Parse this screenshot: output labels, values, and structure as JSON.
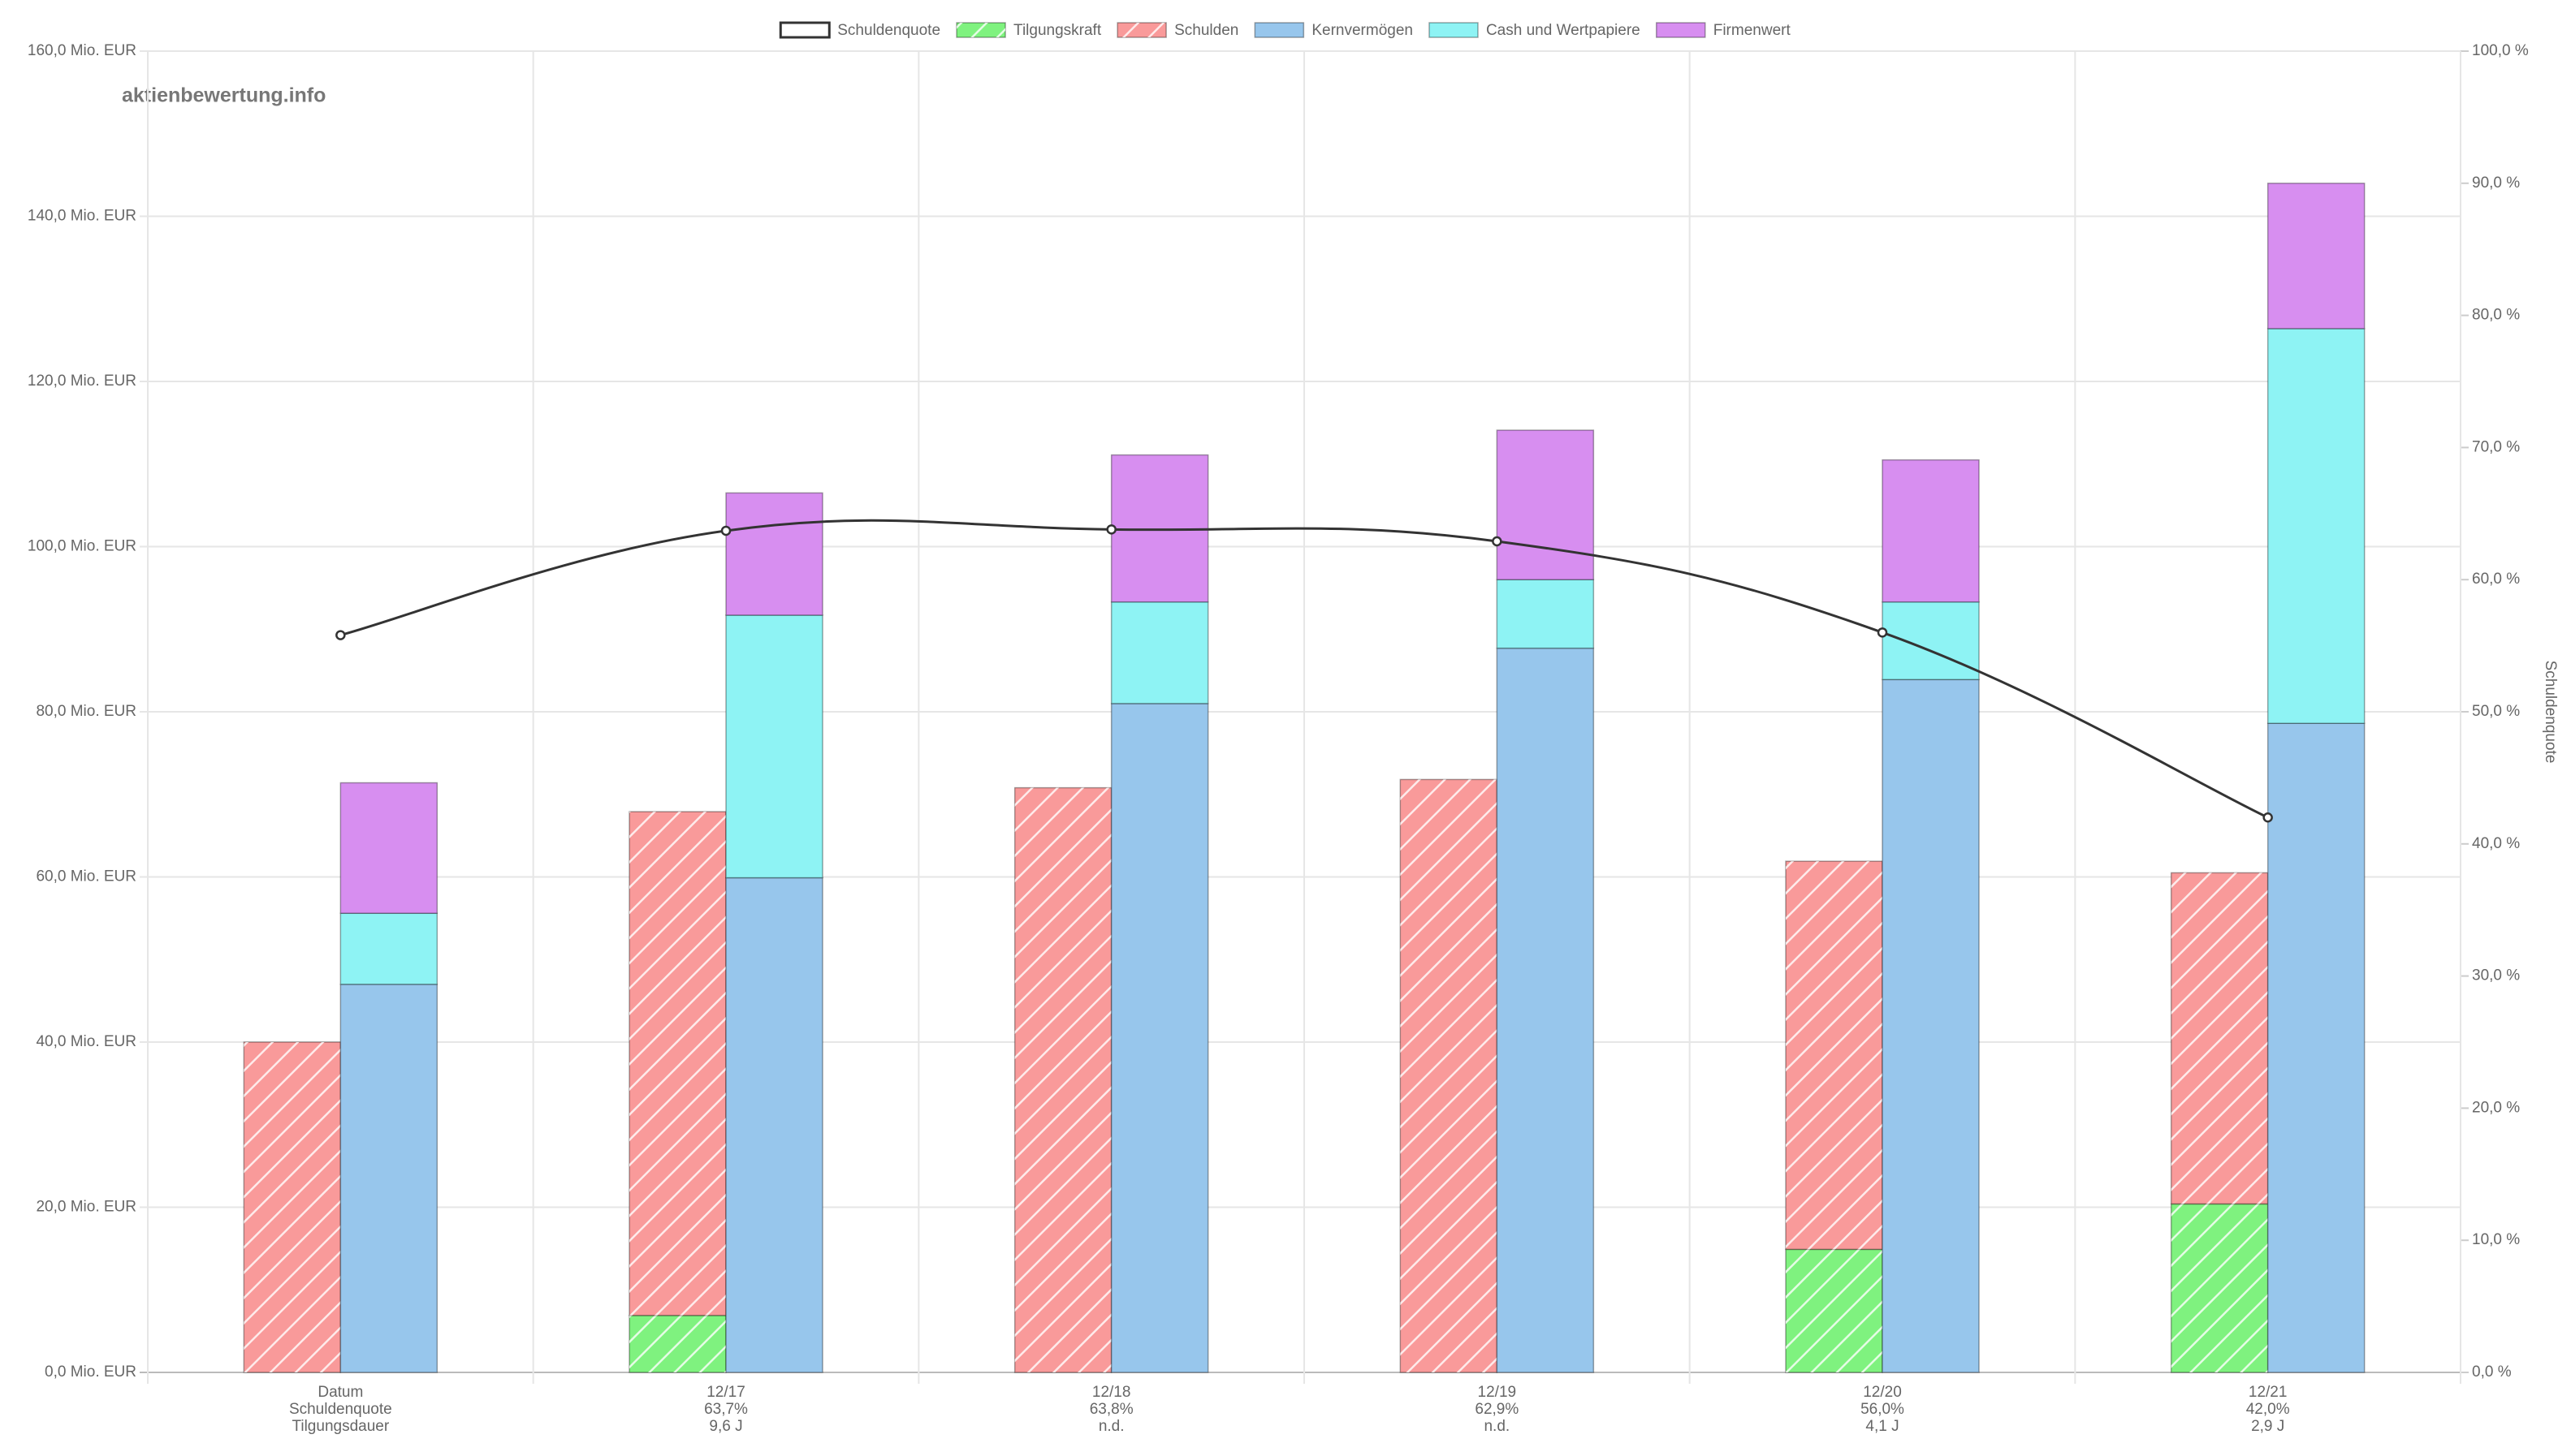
{
  "chart_data": {
    "type": "bar",
    "watermark": "aktienbewertung.info",
    "y2_label": "Schuldenquote",
    "categories": [
      "Datum",
      "12/17",
      "12/18",
      "12/19",
      "12/20",
      "12/21"
    ],
    "quote_labels": [
      "Schuldenquote",
      "63,7%",
      "63,8%",
      "62,9%",
      "56,0%",
      "42,0%"
    ],
    "duration_labels": [
      "Tilgungsdauer",
      "9,6 J",
      "n.d.",
      "n.d.",
      "4,1 J",
      "2,9 J"
    ],
    "series": [
      {
        "name": "Schuldenquote",
        "type": "line",
        "axis": "y2",
        "color": "#333333",
        "values": [
          55.8,
          63.7,
          63.8,
          62.9,
          56.0,
          42.0
        ]
      },
      {
        "name": "Tilgungskraft",
        "stack": "a",
        "hatched": true,
        "color": "#7ff27f",
        "values": [
          0,
          6.9,
          0,
          0,
          14.9,
          20.4
        ]
      },
      {
        "name": "Schulden",
        "stack": "a",
        "hatched": true,
        "color": "#f99a9a",
        "values": [
          40.0,
          61.0,
          70.8,
          71.8,
          47.0,
          40.1
        ]
      },
      {
        "name": "Kernvermögen",
        "stack": "b",
        "color": "#97c6ec",
        "values": [
          47.0,
          59.9,
          81.0,
          87.7,
          83.9,
          78.6
        ]
      },
      {
        "name": "Cash und Wertpapiere",
        "stack": "b",
        "color": "#8ef3f4",
        "values": [
          8.6,
          31.8,
          12.3,
          8.3,
          9.4,
          47.8
        ]
      },
      {
        "name": "Firmenwert",
        "stack": "b",
        "color": "#d78ef0",
        "values": [
          15.8,
          14.8,
          17.8,
          18.1,
          17.2,
          17.6
        ]
      }
    ],
    "ylim": [
      0,
      160
    ],
    "yticks": [
      {
        "value": 0,
        "label": "0,0 Mio. EUR"
      },
      {
        "value": 20,
        "label": "20,0 Mio. EUR"
      },
      {
        "value": 40,
        "label": "40,0 Mio. EUR"
      },
      {
        "value": 60,
        "label": "60,0 Mio. EUR"
      },
      {
        "value": 80,
        "label": "80,0 Mio. EUR"
      },
      {
        "value": 100,
        "label": "100,0 Mio. EUR"
      },
      {
        "value": 120,
        "label": "120,0 Mio. EUR"
      },
      {
        "value": 140,
        "label": "140,0 Mio. EUR"
      },
      {
        "value": 160,
        "label": "160,0 Mio. EUR"
      }
    ],
    "y2lim": [
      0,
      100
    ],
    "y2ticks": [
      {
        "value": 0,
        "label": "0,0 %"
      },
      {
        "value": 10,
        "label": "10,0 %"
      },
      {
        "value": 20,
        "label": "20,0 %"
      },
      {
        "value": 30,
        "label": "30,0 %"
      },
      {
        "value": 40,
        "label": "40,0 %"
      },
      {
        "value": 50,
        "label": "50,0 %"
      },
      {
        "value": 60,
        "label": "60,0 %"
      },
      {
        "value": 70,
        "label": "70,0 %"
      },
      {
        "value": 80,
        "label": "80,0 %"
      },
      {
        "value": 90,
        "label": "90,0 %"
      },
      {
        "value": 100,
        "label": "100,0 %"
      }
    ],
    "grid": true
  }
}
